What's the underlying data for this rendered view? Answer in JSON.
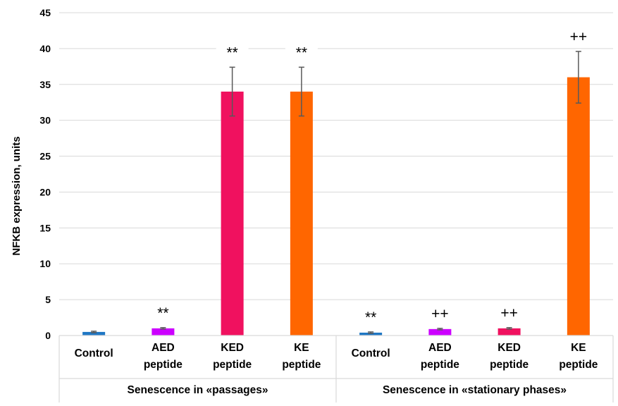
{
  "chart_data": {
    "type": "bar",
    "title": "",
    "xlabel": "",
    "ylabel": "NFKB expression, units",
    "ylim": [
      0,
      45
    ],
    "yticks": [
      0,
      5,
      10,
      15,
      20,
      25,
      30,
      35,
      40,
      45
    ],
    "grid": true,
    "legend": "none",
    "groups": [
      {
        "label": "Senescence in «passages»",
        "categories": [
          {
            "lines": [
              "Control"
            ],
            "value": 0.5,
            "error": 0.1,
            "color": "#1F77C4",
            "sig": ""
          },
          {
            "lines": [
              "AED",
              "peptide"
            ],
            "value": 1.0,
            "error": 0.1,
            "color": "#CC00FF",
            "sig": "**"
          },
          {
            "lines": [
              "KED",
              "peptide"
            ],
            "value": 34.0,
            "error": 3.4,
            "color": "#F0115F",
            "sig": "**"
          },
          {
            "lines": [
              "KE",
              "peptide"
            ],
            "value": 34.0,
            "error": 3.4,
            "color": "#FF6600",
            "sig": "**"
          }
        ]
      },
      {
        "label": "Senescence in  «stationary phases»",
        "categories": [
          {
            "lines": [
              "Control"
            ],
            "value": 0.4,
            "error": 0.1,
            "color": "#1F77C4",
            "sig": "**"
          },
          {
            "lines": [
              "AED",
              "peptide"
            ],
            "value": 0.9,
            "error": 0.1,
            "color": "#CC00FF",
            "sig": "++"
          },
          {
            "lines": [
              "KED",
              "peptide"
            ],
            "value": 1.0,
            "error": 0.1,
            "color": "#F0115F",
            "sig": "++"
          },
          {
            "lines": [
              "KE",
              "peptide"
            ],
            "value": 36.0,
            "error": 3.6,
            "color": "#FF6600",
            "sig": "++"
          }
        ]
      }
    ]
  }
}
